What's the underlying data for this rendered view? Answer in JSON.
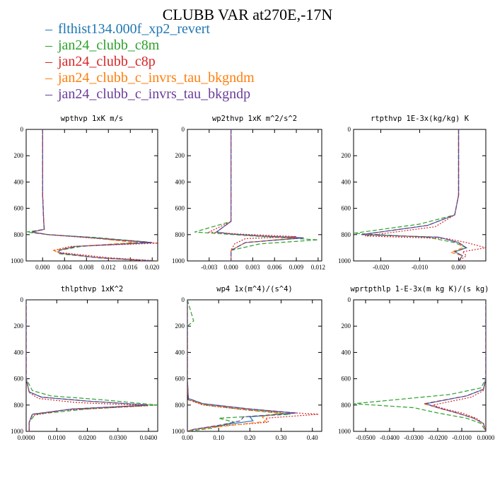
{
  "page": {
    "title": "CLUBB VAR at270E,-17N"
  },
  "legend": [
    {
      "label": "flthist134.000f_xp2_revert",
      "color": "#1f77b4"
    },
    {
      "label": "jan24_clubb_c8m",
      "color": "#2ca02c"
    },
    {
      "label": "jan24_clubb_c8p",
      "color": "#d62728"
    },
    {
      "label": "jan24_clubb_c_invrs_tau_bkgndm",
      "color": "#ff7f0e"
    },
    {
      "label": "jan24_clubb_c_invrs_tau_bkgndp",
      "color": "#6a3d9a"
    }
  ],
  "chart_data": [
    {
      "type": "line",
      "title": "wpthvp  1xK m/s",
      "xlim": [
        -0.003,
        0.021
      ],
      "ylim": [
        1000,
        0
      ],
      "xticks": [
        "0.000",
        "0.004",
        "0.008",
        "0.012",
        "0.016",
        "0.020"
      ],
      "xtick_values": [
        0,
        0.004,
        0.008,
        0.012,
        0.016,
        0.02
      ],
      "yticks": [
        "0",
        "200",
        "400",
        "600",
        "800",
        "1000"
      ],
      "series": [
        {
          "name": "flthist134.000f_xp2_revert",
          "x": [
            0,
            0,
            0,
            0.0002,
            0.0003,
            -0.002,
            0.001,
            0.008,
            0.02,
            0.006,
            0.003,
            0.003,
            0.01,
            0.02
          ],
          "y": [
            0,
            100,
            500,
            700,
            760,
            780,
            800,
            820,
            860,
            890,
            920,
            940,
            975,
            1000
          ]
        },
        {
          "name": "jan24_clubb_c8m",
          "x": [
            0,
            0,
            0,
            0.0002,
            0.0003,
            -0.003,
            0.001,
            0.009,
            0.019,
            0.007,
            0.003,
            0.003,
            0.01,
            0.021
          ],
          "y": [
            0,
            100,
            500,
            700,
            760,
            780,
            800,
            820,
            855,
            890,
            920,
            945,
            975,
            1000
          ]
        },
        {
          "name": "jan24_clubb_c8p",
          "x": [
            0,
            0,
            0,
            0.0002,
            0.0003,
            -0.002,
            0.001,
            0.007,
            0.021,
            0.005,
            0.002,
            0.003,
            0.012,
            0.021
          ],
          "y": [
            0,
            100,
            500,
            700,
            760,
            780,
            800,
            820,
            865,
            890,
            920,
            935,
            975,
            1000
          ]
        },
        {
          "name": "jan24_clubb_c_invrs_tau_bkgndm",
          "x": [
            0,
            0,
            0,
            0.0002,
            0.0003,
            -0.002,
            0.001,
            0.008,
            0.017,
            0.006,
            0.002,
            0.003,
            0.01,
            0.019
          ],
          "y": [
            0,
            100,
            500,
            700,
            760,
            780,
            800,
            820,
            860,
            890,
            920,
            940,
            975,
            1000
          ]
        },
        {
          "name": "jan24_clubb_c_invrs_tau_bkgndp",
          "x": [
            0,
            0,
            0,
            0.0002,
            0.0003,
            -0.002,
            0.001,
            0.008,
            0.02,
            0.006,
            0.003,
            0.003,
            0.01,
            0.02
          ],
          "y": [
            0,
            100,
            500,
            700,
            760,
            780,
            800,
            820,
            860,
            890,
            920,
            940,
            975,
            1000
          ]
        }
      ]
    },
    {
      "type": "line",
      "title": "wp2thvp  1xK m^2/s^2",
      "xlim": [
        -0.006,
        0.0125
      ],
      "ylim": [
        1000,
        0
      ],
      "xticks": [
        "-0.003",
        "0.000",
        "0.003",
        "0.006",
        "0.009",
        "0.012"
      ],
      "xtick_values": [
        -0.003,
        0,
        0.003,
        0.006,
        0.009,
        0.012
      ],
      "yticks": [
        "0",
        "200",
        "400",
        "600",
        "800",
        "1000"
      ],
      "series": [
        {
          "name": "flthist134.000f_xp2_revert",
          "x": [
            0,
            0,
            0,
            0,
            -0.002,
            0,
            0.004,
            0.01,
            0.002,
            0,
            0
          ],
          "y": [
            0,
            100,
            500,
            700,
            780,
            795,
            810,
            825,
            860,
            920,
            1000
          ]
        },
        {
          "name": "jan24_clubb_c8m",
          "x": [
            0,
            0,
            0,
            0,
            -0.005,
            -0.001,
            0.003,
            0.012,
            0.004,
            0,
            0
          ],
          "y": [
            0,
            100,
            500,
            700,
            780,
            795,
            810,
            840,
            870,
            920,
            1000
          ]
        },
        {
          "name": "jan24_clubb_c8p",
          "x": [
            0,
            0,
            0,
            0,
            -0.003,
            0.001,
            0.009,
            0.002,
            0.0005,
            0,
            0
          ],
          "y": [
            0,
            100,
            500,
            700,
            780,
            795,
            815,
            830,
            870,
            920,
            1000
          ]
        },
        {
          "name": "jan24_clubb_c_invrs_tau_bkgndm",
          "x": [
            0,
            0,
            0,
            0,
            -0.002,
            0,
            0.004,
            0.009,
            0.002,
            0,
            0
          ],
          "y": [
            0,
            100,
            500,
            700,
            780,
            795,
            810,
            825,
            860,
            920,
            1000
          ]
        },
        {
          "name": "jan24_clubb_c_invrs_tau_bkgndp",
          "x": [
            0,
            0,
            0,
            0,
            -0.002,
            0,
            0.004,
            0.01,
            0.002,
            0,
            0
          ],
          "y": [
            0,
            100,
            500,
            700,
            780,
            795,
            810,
            825,
            860,
            920,
            1000
          ]
        }
      ]
    },
    {
      "type": "line",
      "title": "rtpthvp  1E-3x(kg/kg) K",
      "xlim": [
        -0.027,
        0.007
      ],
      "ylim": [
        1000,
        0
      ],
      "xticks": [
        "-0.020",
        "-0.010",
        "0.000"
      ],
      "xtick_values": [
        -0.02,
        -0.01,
        0
      ],
      "yticks": [
        "0",
        "200",
        "400",
        "600",
        "800",
        "1000"
      ],
      "series": [
        {
          "name": "flthist134.000f_xp2_revert",
          "x": [
            0,
            0,
            0,
            -0.001,
            -0.008,
            -0.025,
            -0.005,
            0,
            0.002,
            -0.001,
            0.001,
            0
          ],
          "y": [
            0,
            200,
            500,
            650,
            730,
            800,
            820,
            860,
            900,
            930,
            960,
            1000
          ]
        },
        {
          "name": "jan24_clubb_c8m",
          "x": [
            0,
            0,
            0,
            -0.001,
            -0.01,
            -0.027,
            -0.008,
            -0.001,
            0.002,
            -0.001,
            0.001,
            0
          ],
          "y": [
            0,
            200,
            500,
            650,
            720,
            790,
            820,
            860,
            900,
            930,
            960,
            1000
          ]
        },
        {
          "name": "jan24_clubb_c8p",
          "x": [
            0,
            0,
            0,
            -0.001,
            -0.006,
            -0.024,
            -0.003,
            0.002,
            0.007,
            0.001,
            0.002,
            0
          ],
          "y": [
            0,
            200,
            500,
            650,
            740,
            810,
            830,
            860,
            900,
            930,
            960,
            1000
          ]
        },
        {
          "name": "jan24_clubb_c_invrs_tau_bkgndm",
          "x": [
            0,
            0,
            0,
            -0.001,
            -0.008,
            -0.025,
            -0.005,
            0,
            0.001,
            -0.002,
            0.001,
            0
          ],
          "y": [
            0,
            200,
            500,
            650,
            730,
            800,
            820,
            860,
            900,
            935,
            960,
            1000
          ]
        },
        {
          "name": "jan24_clubb_c_invrs_tau_bkgndp",
          "x": [
            0,
            0,
            0,
            -0.001,
            -0.008,
            -0.025,
            -0.005,
            0,
            0.002,
            -0.001,
            0.001,
            0
          ],
          "y": [
            0,
            200,
            500,
            650,
            730,
            800,
            820,
            860,
            900,
            930,
            960,
            1000
          ]
        }
      ]
    },
    {
      "type": "line",
      "title": "thlpthvp  1xK^2",
      "xlim": [
        0,
        0.043
      ],
      "ylim": [
        1000,
        0
      ],
      "xticks": [
        "0.0000",
        "0.0100",
        "0.0200",
        "0.0300",
        "0.0400"
      ],
      "xtick_values": [
        0,
        0.01,
        0.02,
        0.03,
        0.04
      ],
      "yticks": [
        "0",
        "200",
        "400",
        "600",
        "800",
        "1000"
      ],
      "series": [
        {
          "name": "flthist134.000f_xp2_revert",
          "x": [
            0,
            0,
            0,
            0.001,
            0.005,
            0.02,
            0.04,
            0.015,
            0.002,
            0.001,
            0.001
          ],
          "y": [
            0,
            300,
            600,
            700,
            740,
            770,
            800,
            830,
            870,
            930,
            1000
          ]
        },
        {
          "name": "jan24_clubb_c8m",
          "x": [
            0,
            0,
            0,
            0.002,
            0.008,
            0.025,
            0.043,
            0.02,
            0.003,
            0.001,
            0.001
          ],
          "y": [
            0,
            300,
            600,
            690,
            730,
            760,
            800,
            830,
            870,
            930,
            1000
          ]
        },
        {
          "name": "jan24_clubb_c8p",
          "x": [
            0,
            0,
            0,
            0.001,
            0.004,
            0.016,
            0.04,
            0.012,
            0.002,
            0.001,
            0.001
          ],
          "y": [
            0,
            300,
            600,
            705,
            750,
            780,
            805,
            840,
            880,
            930,
            1000
          ]
        },
        {
          "name": "jan24_clubb_c_invrs_tau_bkgndm",
          "x": [
            0,
            0,
            0,
            0.001,
            0.005,
            0.02,
            0.04,
            0.015,
            0.002,
            0.001,
            0.001
          ],
          "y": [
            0,
            300,
            600,
            700,
            740,
            770,
            800,
            830,
            870,
            930,
            1000
          ]
        },
        {
          "name": "jan24_clubb_c_invrs_tau_bkgndp",
          "x": [
            0,
            0,
            0,
            0.001,
            0.005,
            0.02,
            0.04,
            0.015,
            0.002,
            0.001,
            0.001
          ],
          "y": [
            0,
            300,
            600,
            700,
            740,
            770,
            800,
            830,
            870,
            930,
            1000
          ]
        }
      ]
    },
    {
      "type": "line",
      "title": "wp4  1x(m^4)/(s^4)",
      "xlim": [
        0,
        0.43
      ],
      "ylim": [
        1000,
        0
      ],
      "xticks": [
        "0.00",
        "0.10",
        "0.20",
        "0.30",
        "0.40"
      ],
      "xtick_values": [
        0,
        0.1,
        0.2,
        0.3,
        0.4
      ],
      "yticks": [
        "0",
        "200",
        "400",
        "600",
        "800",
        "1000"
      ],
      "series": [
        {
          "name": "flthist134.000f_xp2_revert",
          "x": [
            0,
            0,
            0,
            0.003,
            0.05,
            0.2,
            0.34,
            0.2,
            0.21,
            0.12,
            0.02,
            0
          ],
          "y": [
            0,
            300,
            600,
            750,
            790,
            830,
            860,
            890,
            920,
            950,
            985,
            1000
          ]
        },
        {
          "name": "jan24_clubb_c8m",
          "x": [
            0,
            0.02,
            0,
            0,
            0.003,
            0.06,
            0.2,
            0.33,
            0.1,
            0.15,
            0.08,
            0
          ],
          "y": [
            0,
            160,
            200,
            600,
            760,
            800,
            840,
            870,
            900,
            930,
            975,
            1000
          ]
        },
        {
          "name": "jan24_clubb_c8p",
          "x": [
            0,
            0,
            0,
            0.003,
            0.05,
            0.2,
            0.42,
            0.25,
            0.26,
            0.1,
            0.01,
            0
          ],
          "y": [
            0,
            300,
            600,
            760,
            800,
            840,
            870,
            900,
            930,
            960,
            990,
            1000
          ]
        },
        {
          "name": "jan24_clubb_c_invrs_tau_bkgndm",
          "x": [
            0,
            0,
            0,
            0.003,
            0.04,
            0.18,
            0.3,
            0.24,
            0.25,
            0.14,
            0.02,
            0
          ],
          "y": [
            0,
            300,
            600,
            750,
            790,
            830,
            860,
            890,
            925,
            955,
            985,
            1000
          ]
        },
        {
          "name": "jan24_clubb_c_invrs_tau_bkgndp",
          "x": [
            0,
            0,
            0,
            0.003,
            0.05,
            0.2,
            0.35,
            0.18,
            0.17,
            0.11,
            0.02,
            0
          ],
          "y": [
            0,
            300,
            600,
            750,
            790,
            830,
            860,
            890,
            920,
            950,
            985,
            1000
          ]
        }
      ]
    },
    {
      "type": "line",
      "title": "wprtpthlp  1-E-3x(m kg K)/(s kg)",
      "xlim": [
        -0.055,
        0
      ],
      "ylim": [
        1000,
        0
      ],
      "xticks": [
        "-0.0500",
        "-0.0400",
        "-0.0300",
        "-0.0200",
        "-0.0100",
        "0.0000"
      ],
      "xtick_values": [
        -0.05,
        -0.04,
        -0.03,
        -0.02,
        -0.01,
        0
      ],
      "yticks": [
        "0",
        "200",
        "400",
        "600",
        "800",
        "1000"
      ],
      "series": [
        {
          "name": "flthist134.000f_xp2_revert",
          "x": [
            0,
            0,
            0,
            -0.001,
            -0.008,
            -0.025,
            -0.02,
            -0.012,
            -0.005,
            -0.001,
            0
          ],
          "y": [
            0,
            300,
            600,
            680,
            730,
            790,
            820,
            860,
            900,
            940,
            1000
          ]
        },
        {
          "name": "jan24_clubb_c8m",
          "x": [
            0,
            0,
            0,
            -0.002,
            -0.015,
            -0.055,
            -0.03,
            -0.02,
            -0.008,
            -0.002,
            0
          ],
          "y": [
            0,
            300,
            600,
            670,
            720,
            790,
            820,
            860,
            900,
            940,
            1000
          ]
        },
        {
          "name": "jan24_clubb_c8p",
          "x": [
            0,
            0,
            0,
            -0.001,
            -0.006,
            -0.022,
            -0.018,
            -0.01,
            -0.004,
            -0.001,
            0
          ],
          "y": [
            0,
            300,
            600,
            690,
            740,
            800,
            825,
            860,
            900,
            940,
            1000
          ]
        },
        {
          "name": "jan24_clubb_c_invrs_tau_bkgndm",
          "x": [
            0,
            0,
            0,
            -0.001,
            -0.008,
            -0.026,
            -0.02,
            -0.012,
            -0.005,
            -0.001,
            0
          ],
          "y": [
            0,
            300,
            600,
            680,
            730,
            790,
            820,
            860,
            900,
            940,
            1000
          ]
        },
        {
          "name": "jan24_clubb_c_invrs_tau_bkgndp",
          "x": [
            0,
            0,
            0,
            -0.001,
            -0.008,
            -0.025,
            -0.02,
            -0.012,
            -0.005,
            -0.001,
            0
          ],
          "y": [
            0,
            300,
            600,
            680,
            730,
            790,
            820,
            860,
            900,
            940,
            1000
          ]
        }
      ]
    }
  ]
}
